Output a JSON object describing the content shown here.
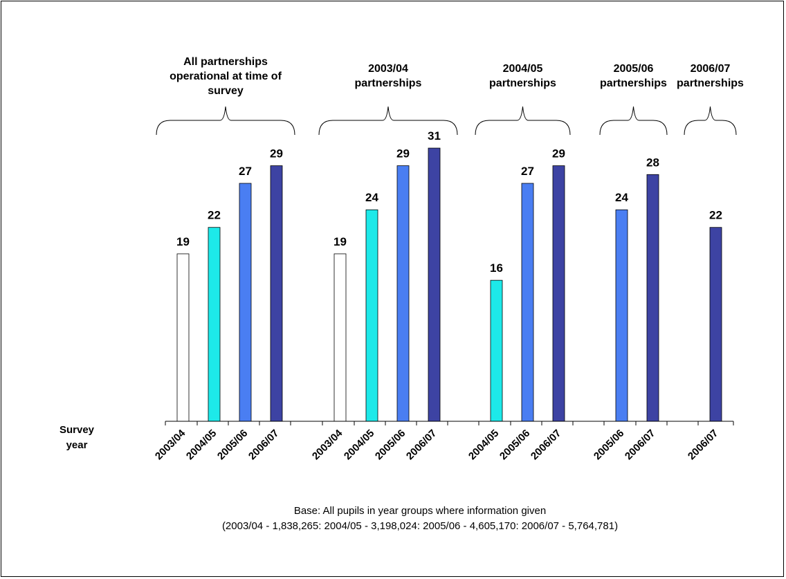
{
  "chart_data": {
    "type": "bar",
    "xlabel": "Survey year",
    "ylim": [
      0,
      35
    ],
    "series_colors": {
      "2003/04": "#ffffff",
      "2004/05": "#1de9e9",
      "2005/06": "#4a7ef2",
      "2006/07": "#3d43a3"
    },
    "groups": [
      {
        "title": [
          "All partnerships",
          "operational at time of",
          "survey"
        ],
        "bars": [
          {
            "category": "2003/04",
            "value": 19
          },
          {
            "category": "2004/05",
            "value": 22
          },
          {
            "category": "2005/06",
            "value": 27
          },
          {
            "category": "2006/07",
            "value": 29
          }
        ]
      },
      {
        "title": [
          "2003/04",
          "partnerships"
        ],
        "bars": [
          {
            "category": "2003/04",
            "value": 19
          },
          {
            "category": "2004/05",
            "value": 24
          },
          {
            "category": "2005/06",
            "value": 29
          },
          {
            "category": "2006/07",
            "value": 31
          }
        ]
      },
      {
        "title": [
          "2004/05",
          "partnerships"
        ],
        "bars": [
          {
            "category": "2004/05",
            "value": 16
          },
          {
            "category": "2005/06",
            "value": 27
          },
          {
            "category": "2006/07",
            "value": 29
          }
        ]
      },
      {
        "title": [
          "2005/06",
          "partnerships"
        ],
        "bars": [
          {
            "category": "2005/06",
            "value": 24
          },
          {
            "category": "2006/07",
            "value": 28
          }
        ]
      },
      {
        "title": [
          "2006/07",
          "partnerships"
        ],
        "bars": [
          {
            "category": "2006/07",
            "value": 22
          }
        ]
      }
    ],
    "footnote": [
      "Base: All pupils in year groups where information given",
      "(2003/04  - 1,838,265:  2004/05   - 3,198,024:  2005/06   - 4,605,170: 2006/07   - 5,764,781)"
    ]
  }
}
